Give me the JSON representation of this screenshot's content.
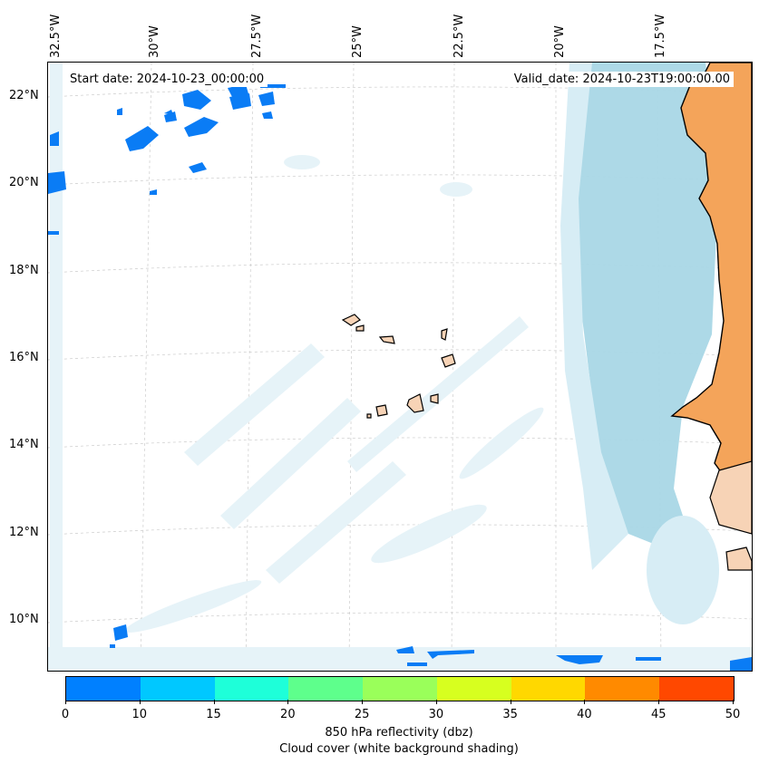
{
  "map": {
    "start_date": "Start date: 2024-10-23_00:00:00",
    "valid_date": "Valid_date: 2024-10-23T19:00:00.00",
    "lon_labels": [
      "32.5°W",
      "30°W",
      "27.5°W",
      "25°W",
      "22.5°W",
      "20°W",
      "17.5°W"
    ],
    "lat_labels": [
      "22°N",
      "20°N",
      "18°N",
      "16°N",
      "14°N",
      "12°N",
      "10°N"
    ],
    "colors": {
      "land": "#f4a45a",
      "land_light": "#f7d3b6",
      "cloud": "#a9d7e6",
      "cloud_light": "#d7edf5",
      "refl_low": "#0a7cf5"
    },
    "icons": [
      "coastline-shape",
      "cloud-shading",
      "reflectivity-patch",
      "island-shape"
    ]
  },
  "colorbar": {
    "ticks": [
      "0",
      "10",
      "15",
      "20",
      "25",
      "30",
      "35",
      "40",
      "45",
      "50"
    ],
    "colors": [
      "#0080ff",
      "#00c8ff",
      "#1effd9",
      "#5eff8c",
      "#9aff5a",
      "#d7ff1f",
      "#ffd800",
      "#ff8a00",
      "#ff4800"
    ],
    "title_1": "850 hPa reflectivity (dbz)",
    "title_2": "Cloud cover (white background shading)"
  }
}
